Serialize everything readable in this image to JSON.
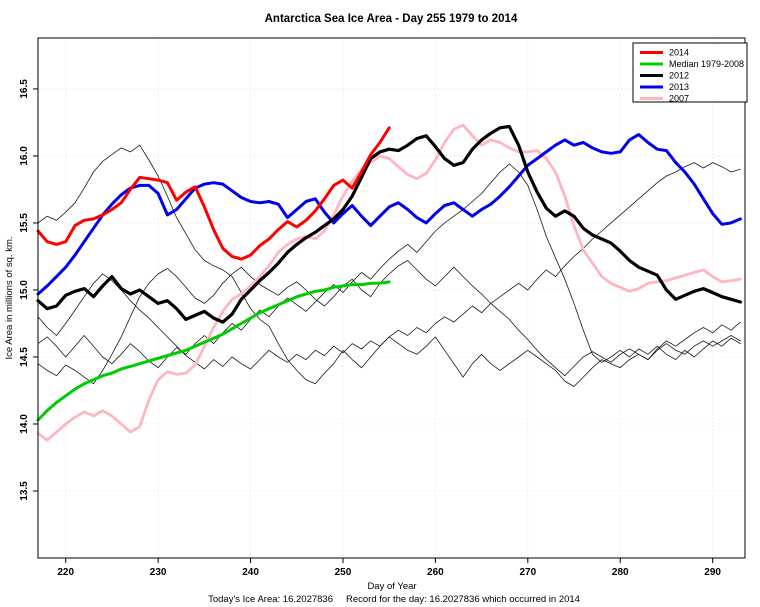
{
  "title": "Antarctica Sea Ice Area - Day 255 1979 to 2014",
  "axes": {
    "xlabel": "Day of Year",
    "ylabel": "Ice Area in millions of sq. km.",
    "x_range": [
      217,
      293.5
    ],
    "y_range": [
      13.0,
      16.88
    ],
    "x_ticks": [
      "220",
      "230",
      "240",
      "250",
      "260",
      "270",
      "280",
      "290"
    ],
    "y_ticks": [
      {
        "v": 13.5,
        "label": "13.5"
      },
      {
        "v": 14.0,
        "label": "14.0"
      },
      {
        "v": 14.5,
        "label": "14.5"
      },
      {
        "v": 15.0,
        "label": "15.0"
      },
      {
        "v": 15.5,
        "label": "15.5"
      },
      {
        "v": 16.0,
        "label": "16.0"
      },
      {
        "v": 16.5,
        "label": "16.5"
      }
    ],
    "grid_color": "#d9d9d9",
    "axis_color": "#000000"
  },
  "caption": {
    "today_text": "Today's Ice Area: 16.2027836",
    "record_text": "Record for the day: 16.2027836 which occurred in 2014"
  },
  "legend": [
    {
      "label": "2014",
      "color": "#ff0000"
    },
    {
      "label": "Median 1979-2008",
      "color": "#00cc00"
    },
    {
      "label": "2012",
      "color": "#000000"
    },
    {
      "label": "2013",
      "color": "#0000ee"
    },
    {
      "label": "2007",
      "color": "#ffb6c1"
    }
  ],
  "chart_data": {
    "type": "line",
    "x_unit": "day_of_year",
    "series": [
      {
        "name": "unlabeled-year-a",
        "color": "#1a1a1a",
        "width": 0.8,
        "start_day": 217,
        "values": [
          15.5,
          15.55,
          15.52,
          15.58,
          15.65,
          15.76,
          15.88,
          15.96,
          16.01,
          16.06,
          16.03,
          16.08,
          15.97,
          15.85,
          15.7,
          15.54,
          15.42,
          15.3,
          15.22,
          15.18,
          15.15,
          15.1,
          14.98,
          14.86,
          14.78,
          14.73,
          14.6,
          14.48,
          14.4,
          14.33,
          14.3,
          14.38,
          14.45,
          14.55,
          14.48,
          14.42,
          14.5,
          14.58,
          14.65,
          14.6,
          14.55,
          14.52,
          14.58,
          14.65,
          14.55,
          14.45,
          14.35,
          14.45,
          14.52,
          14.45,
          14.4,
          14.45,
          14.5,
          14.55,
          14.5,
          14.45,
          14.4,
          14.32,
          14.28,
          14.35,
          14.42,
          14.48,
          14.45,
          14.42,
          14.48,
          14.52,
          14.48,
          14.55,
          14.6,
          14.55,
          14.52,
          14.58,
          14.62,
          14.58,
          14.62,
          14.66,
          14.62
        ]
      },
      {
        "name": "unlabeled-year-b",
        "color": "#1a1a1a",
        "width": 0.8,
        "start_day": 217,
        "values": [
          14.45,
          14.4,
          14.36,
          14.44,
          14.4,
          14.35,
          14.3,
          14.4,
          14.52,
          14.65,
          14.8,
          14.95,
          15.05,
          15.12,
          15.16,
          15.1,
          15.02,
          14.94,
          14.9,
          14.96,
          15.05,
          15.12,
          15.17,
          15.1,
          15.04,
          15.0,
          14.96,
          15.02,
          15.06,
          15.0,
          14.93,
          14.88,
          14.95,
          15.03,
          15.08,
          15.0,
          14.95,
          15.05,
          15.12,
          15.18,
          15.22,
          15.15,
          15.08,
          15.03,
          15.1,
          15.17,
          15.1,
          15.03,
          14.97,
          14.9,
          14.84,
          14.78,
          14.7,
          14.63,
          14.55,
          14.48,
          14.42,
          14.36,
          14.43,
          14.5,
          14.54,
          14.5,
          14.46,
          14.52,
          14.56,
          14.52,
          14.48,
          14.56,
          14.62,
          14.58,
          14.63,
          14.68,
          14.72,
          14.68,
          14.74,
          14.7,
          14.76
        ]
      },
      {
        "name": "unlabeled-year-c",
        "color": "#1a1a1a",
        "width": 0.8,
        "start_day": 217,
        "values": [
          14.6,
          14.65,
          14.58,
          14.5,
          14.58,
          14.66,
          14.58,
          14.5,
          14.45,
          14.52,
          14.6,
          14.54,
          14.47,
          14.42,
          14.5,
          14.57,
          14.52,
          14.6,
          14.66,
          14.6,
          14.68,
          14.75,
          14.7,
          14.78,
          14.85,
          14.8,
          14.88,
          14.94,
          14.89,
          14.84,
          14.91,
          14.98,
          15.04,
          14.98,
          15.06,
          15.13,
          15.08,
          15.16,
          15.23,
          15.29,
          15.34,
          15.28,
          15.36,
          15.44,
          15.5,
          15.55,
          15.6,
          15.66,
          15.72,
          15.8,
          15.88,
          15.94,
          15.88,
          15.78,
          15.6,
          15.4,
          15.24,
          15.08,
          14.9,
          14.7,
          14.52,
          14.46,
          14.5,
          14.55,
          14.5,
          14.56,
          14.52,
          14.58,
          14.52,
          14.48,
          14.55,
          14.5,
          14.56,
          14.62,
          14.58,
          14.64,
          14.6
        ]
      },
      {
        "name": "unlabeled-year-d",
        "color": "#1a1a1a",
        "width": 0.8,
        "start_day": 217,
        "values": [
          14.8,
          14.72,
          14.66,
          14.75,
          14.85,
          14.95,
          15.05,
          15.12,
          15.07,
          15.0,
          14.92,
          14.85,
          14.79,
          14.72,
          14.65,
          14.58,
          14.51,
          14.46,
          14.41,
          14.48,
          14.43,
          14.5,
          14.45,
          14.41,
          14.48,
          14.55,
          14.5,
          14.46,
          14.52,
          14.48,
          14.55,
          14.51,
          14.58,
          14.53,
          14.6,
          14.56,
          14.62,
          14.58,
          14.65,
          14.7,
          14.66,
          14.72,
          14.68,
          14.75,
          14.8,
          14.76,
          14.82,
          14.88,
          14.83,
          14.9,
          14.95,
          15.0,
          15.05,
          15.0,
          15.08,
          15.15,
          15.1,
          15.18,
          15.25,
          15.31,
          15.38,
          15.44,
          15.5,
          15.56,
          15.62,
          15.68,
          15.74,
          15.8,
          15.85,
          15.88,
          15.92,
          15.95,
          15.91,
          15.95,
          15.92,
          15.88,
          15.9
        ]
      },
      {
        "name": "2007",
        "color": "#ffb6c1",
        "width": 2.8,
        "start_day": 217,
        "values": [
          13.93,
          13.88,
          13.94,
          14.0,
          14.05,
          14.09,
          14.06,
          14.1,
          14.06,
          14.0,
          13.94,
          13.98,
          14.18,
          14.33,
          14.39,
          14.37,
          14.38,
          14.44,
          14.58,
          14.72,
          14.84,
          14.93,
          14.97,
          15.03,
          15.1,
          15.18,
          15.28,
          15.34,
          15.38,
          15.4,
          15.38,
          15.44,
          15.56,
          15.7,
          15.81,
          15.9,
          15.95,
          16.0,
          15.98,
          15.92,
          15.86,
          15.83,
          15.87,
          15.97,
          16.1,
          16.2,
          16.23,
          16.15,
          16.08,
          16.12,
          16.1,
          16.06,
          16.03,
          16.03,
          16.04,
          15.98,
          15.88,
          15.7,
          15.48,
          15.3,
          15.2,
          15.1,
          15.05,
          15.02,
          14.99,
          15.01,
          15.05,
          15.06,
          15.07,
          15.09,
          15.11,
          15.13,
          15.15,
          15.1,
          15.06,
          15.07,
          15.08
        ]
      },
      {
        "name": "Median 1979-2008",
        "color": "#00cc00",
        "width": 3,
        "start_day": 217,
        "values": [
          14.03,
          14.1,
          14.16,
          14.21,
          14.26,
          14.3,
          14.33,
          14.36,
          14.38,
          14.41,
          14.43,
          14.45,
          14.47,
          14.49,
          14.51,
          14.53,
          14.55,
          14.58,
          14.61,
          14.64,
          14.67,
          14.71,
          14.75,
          14.79,
          14.83,
          14.86,
          14.89,
          14.92,
          14.95,
          14.97,
          14.99,
          15.0,
          15.02,
          15.03,
          15.04,
          15.04,
          15.05,
          15.05,
          15.06
        ]
      },
      {
        "name": "2013",
        "color": "#0000ee",
        "width": 3,
        "start_day": 217,
        "values": [
          14.97,
          15.03,
          15.1,
          15.17,
          15.26,
          15.36,
          15.46,
          15.56,
          15.64,
          15.71,
          15.76,
          15.78,
          15.78,
          15.72,
          15.56,
          15.6,
          15.68,
          15.76,
          15.79,
          15.8,
          15.79,
          15.74,
          15.69,
          15.66,
          15.65,
          15.66,
          15.64,
          15.54,
          15.6,
          15.66,
          15.68,
          15.58,
          15.5,
          15.57,
          15.63,
          15.55,
          15.48,
          15.55,
          15.62,
          15.65,
          15.6,
          15.54,
          15.5,
          15.57,
          15.63,
          15.65,
          15.6,
          15.55,
          15.6,
          15.64,
          15.7,
          15.77,
          15.85,
          15.93,
          15.98,
          16.03,
          16.08,
          16.12,
          16.08,
          16.1,
          16.06,
          16.03,
          16.02,
          16.03,
          16.12,
          16.16,
          16.1,
          16.05,
          16.04,
          15.95,
          15.88,
          15.79,
          15.68,
          15.57,
          15.49,
          15.5,
          15.53
        ]
      },
      {
        "name": "2012",
        "color": "#000000",
        "width": 3.2,
        "start_day": 217,
        "values": [
          14.92,
          14.86,
          14.88,
          14.96,
          14.99,
          15.01,
          14.95,
          15.03,
          15.1,
          15.01,
          14.97,
          15.0,
          14.95,
          14.9,
          14.92,
          14.86,
          14.78,
          14.81,
          14.84,
          14.79,
          14.76,
          14.82,
          14.93,
          15.0,
          15.07,
          15.13,
          15.2,
          15.28,
          15.34,
          15.39,
          15.43,
          15.48,
          15.53,
          15.6,
          15.7,
          15.84,
          15.98,
          16.03,
          16.05,
          16.04,
          16.08,
          16.13,
          16.15,
          16.07,
          15.98,
          15.93,
          15.95,
          16.05,
          16.12,
          16.17,
          16.21,
          16.22,
          16.08,
          15.88,
          15.73,
          15.61,
          15.55,
          15.59,
          15.55,
          15.46,
          15.41,
          15.38,
          15.35,
          15.29,
          15.22,
          15.17,
          15.14,
          15.11,
          15.0,
          14.93,
          14.96,
          14.99,
          15.01,
          14.98,
          14.95,
          14.93,
          14.91
        ]
      },
      {
        "name": "2014",
        "color": "#ff0000",
        "width": 3,
        "start_day": 217,
        "values": [
          15.44,
          15.36,
          15.34,
          15.36,
          15.48,
          15.52,
          15.53,
          15.56,
          15.6,
          15.65,
          15.75,
          15.84,
          15.83,
          15.82,
          15.8,
          15.67,
          15.73,
          15.77,
          15.62,
          15.45,
          15.31,
          15.25,
          15.23,
          15.26,
          15.33,
          15.38,
          15.45,
          15.51,
          15.47,
          15.52,
          15.59,
          15.68,
          15.78,
          15.82,
          15.76,
          15.88,
          16.01,
          16.1,
          16.21
        ]
      }
    ]
  }
}
